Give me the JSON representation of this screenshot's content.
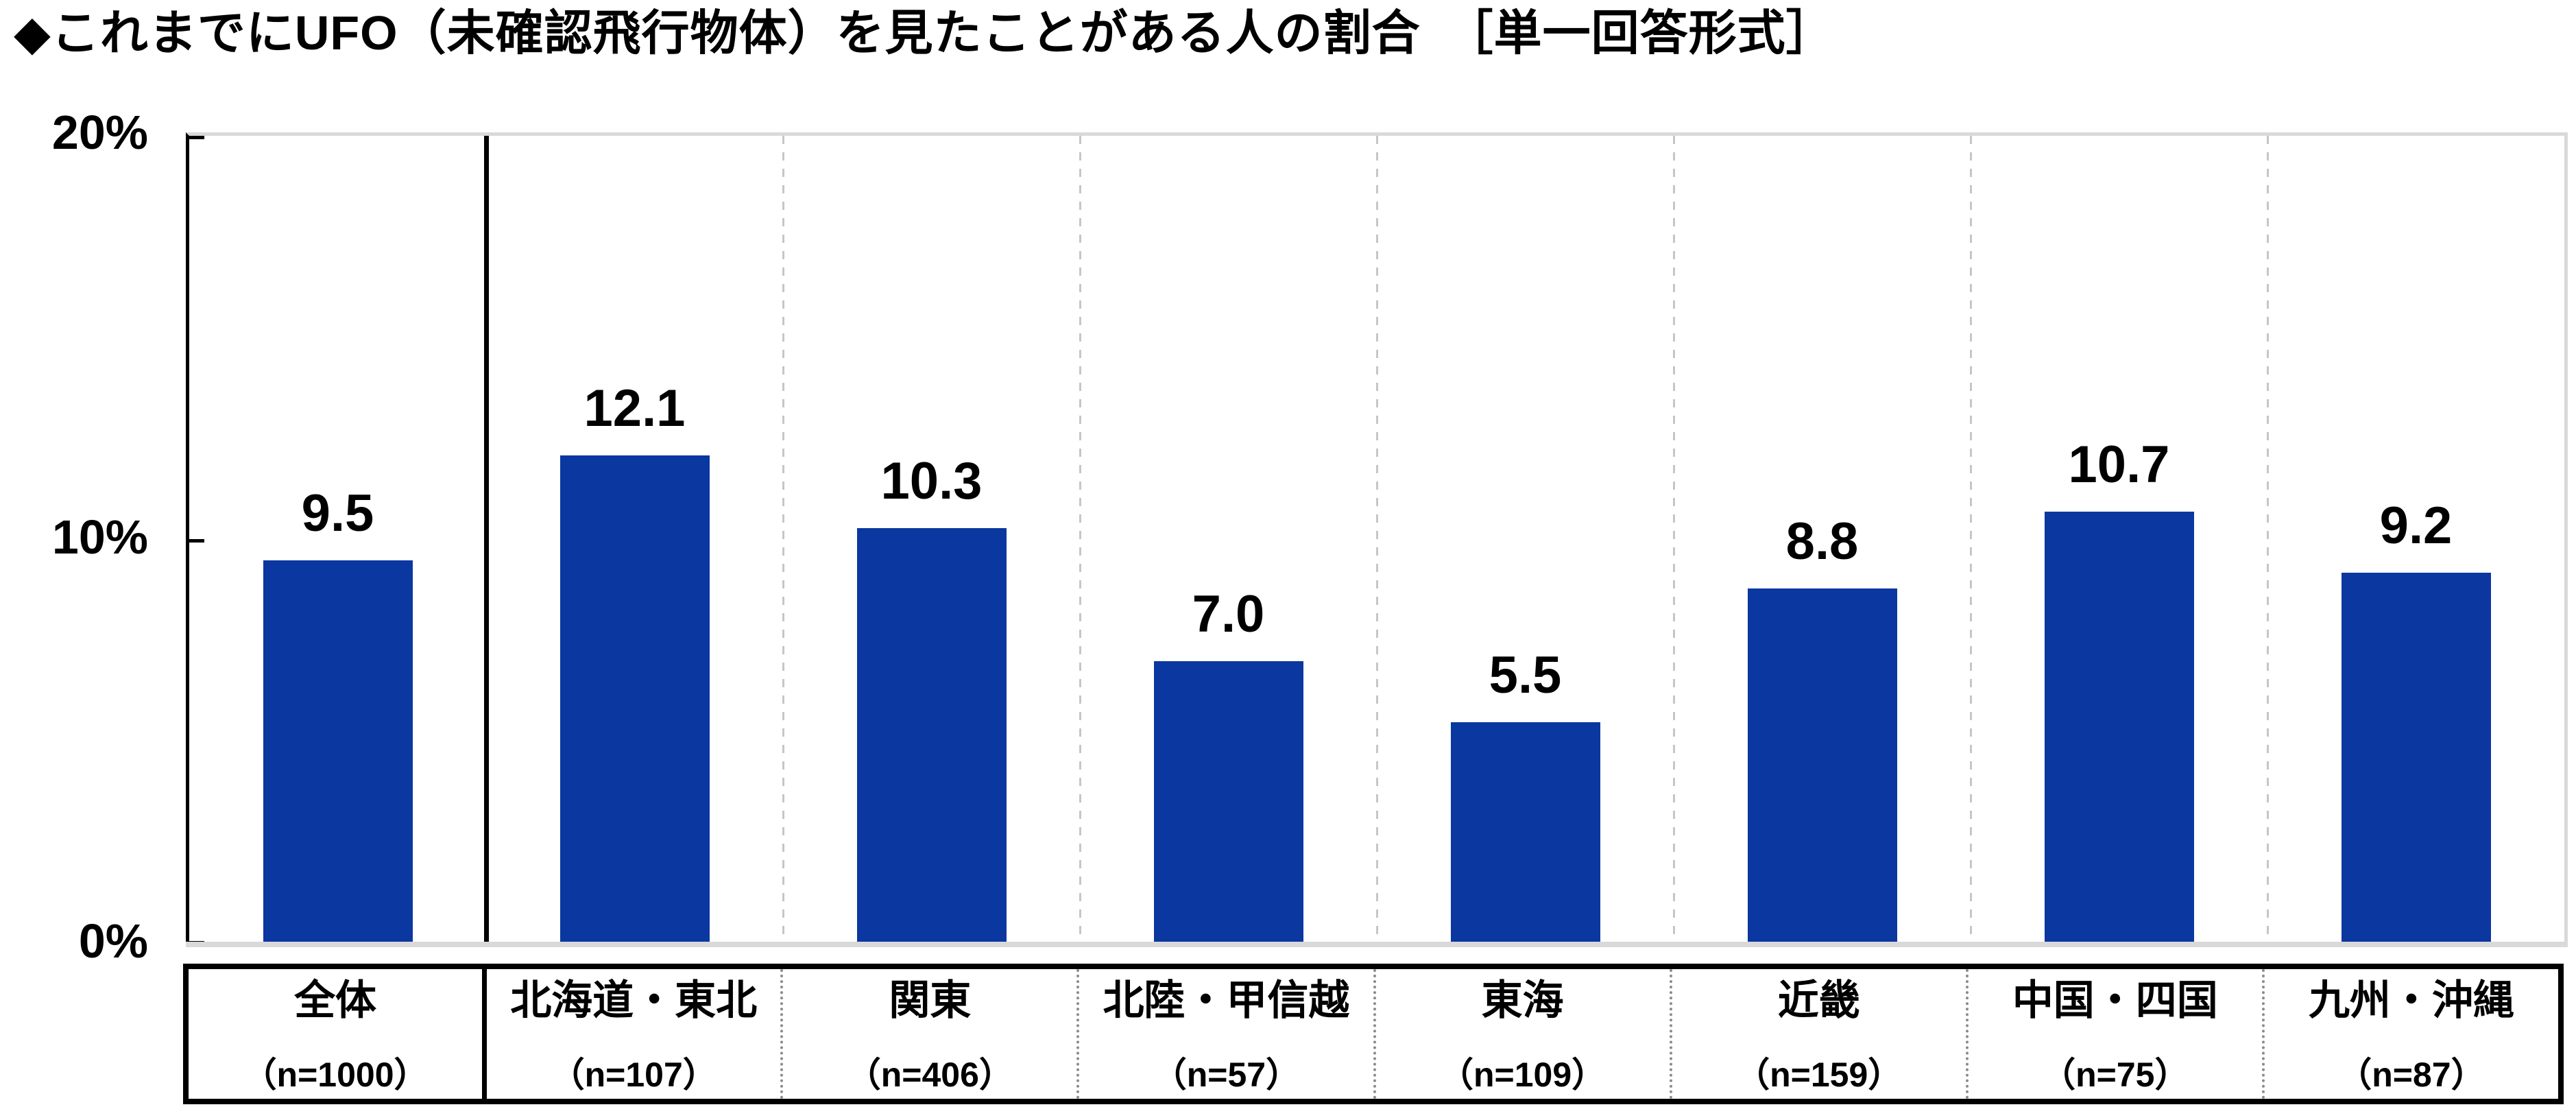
{
  "title": "◆これまでにUFO（未確認飛行物体）を見たことがある人の割合　［単一回答形式］",
  "chart_data": {
    "type": "bar",
    "title": "これまでにUFO（未確認飛行物体）を見たことがある人の割合",
    "question_format": "単一回答形式",
    "categories": [
      "全体",
      "北海道・東北",
      "関東",
      "北陸・甲信越",
      "東海",
      "近畿",
      "中国・四国",
      "九州・沖縄"
    ],
    "sample_sizes": [
      "（n=1000）",
      "（n=107）",
      "（n=406）",
      "（n=57）",
      "（n=109）",
      "（n=159）",
      "（n=75）",
      "（n=87）"
    ],
    "values": [
      9.5,
      12.1,
      10.3,
      7.0,
      5.5,
      8.8,
      10.7,
      9.2
    ],
    "value_labels": [
      "9.5",
      "12.1",
      "10.3",
      "7.0",
      "5.5",
      "8.8",
      "10.7",
      "9.2"
    ],
    "unit": "%",
    "ylim": [
      0,
      20
    ],
    "yticks": [
      {
        "label": "20%",
        "value": 20
      },
      {
        "label": "10%",
        "value": 10
      },
      {
        "label": "0%",
        "value": 0
      }
    ],
    "grid": "vertical-dashed-between-categories",
    "legend": "none",
    "bar_color": "#0A37A0",
    "frame_color": "#D9D9D9",
    "gridline_color": "#C6C6C6",
    "separator_color": "#000000",
    "text_color": "#000000"
  }
}
